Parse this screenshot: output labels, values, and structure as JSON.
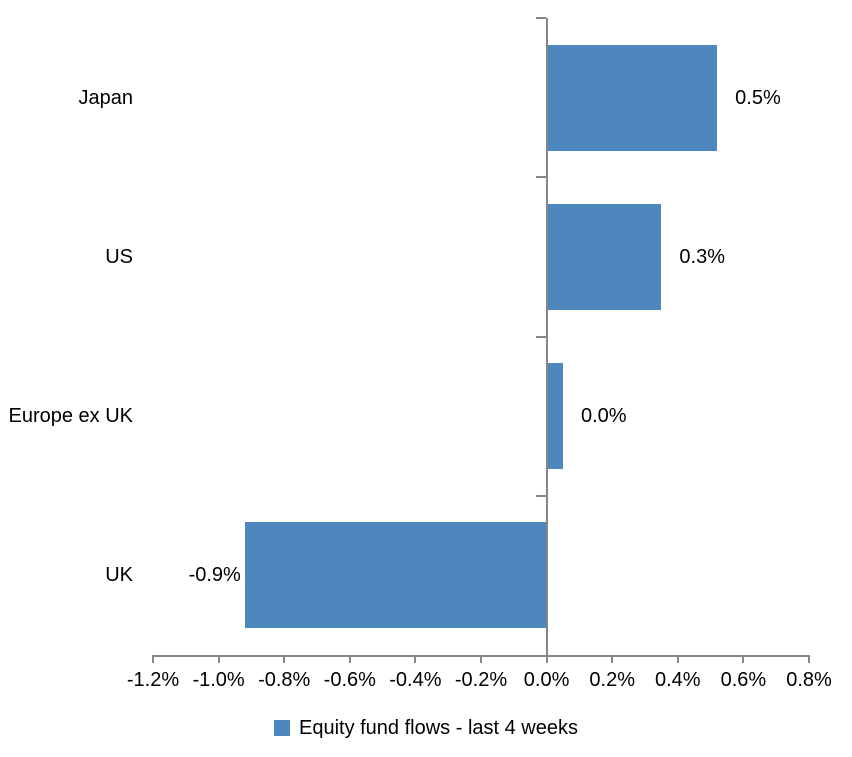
{
  "chart_data": {
    "type": "bar",
    "orientation": "horizontal",
    "title": "",
    "categories": [
      "Japan",
      "US",
      "Europe ex UK",
      "UK"
    ],
    "values": [
      0.5,
      0.3,
      0.0,
      -0.9
    ],
    "bar_values_precise": [
      0.52,
      0.35,
      0.05,
      -0.92
    ],
    "data_labels": [
      "0.5%",
      "0.3%",
      "0.0%",
      "-0.9%"
    ],
    "x_tick_values": [
      -1.2,
      -1.0,
      -0.8,
      -0.6,
      -0.4,
      -0.2,
      0.0,
      0.2,
      0.4,
      0.6,
      0.8
    ],
    "x_tick_labels": [
      "-1.2%",
      "-1.0%",
      "-0.8%",
      "-0.6%",
      "-0.4%",
      "-0.2%",
      "0.0%",
      "0.2%",
      "0.4%",
      "0.6%",
      "0.8%"
    ],
    "xlim": [
      -1.2,
      0.8
    ],
    "xlabel": "",
    "ylabel": "",
    "grid": false,
    "legend": {
      "position": "bottom",
      "label": "Equity fund flows - last 4 weeks"
    },
    "colors": {
      "bar": "#4E87BE",
      "axis": "#868686",
      "text": "#000000",
      "background": "#FFFFFF"
    }
  }
}
